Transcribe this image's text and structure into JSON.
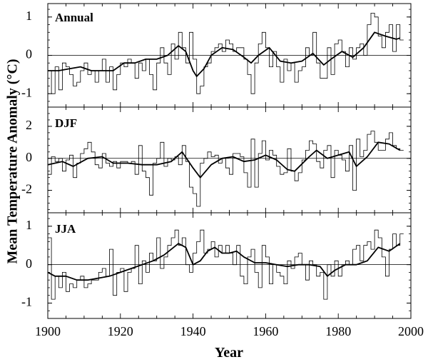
{
  "chart_data": {
    "type": "line",
    "ylabel": "Mean Temperature Anomaly (°C)",
    "xlabel": "Year",
    "x_range": [
      1900,
      2000
    ],
    "x_ticks": [
      1900,
      1920,
      1940,
      1960,
      1980,
      2000
    ],
    "grid": false,
    "legend": "none",
    "panels": [
      {
        "title": "Annual",
        "ylim": [
          -1.35,
          1.35
        ],
        "y_ticks": [
          1,
          0,
          -1
        ],
        "series": [
          {
            "style": "step",
            "color": "#000000",
            "x": [
              1900,
              1901,
              1902,
              1903,
              1904,
              1905,
              1906,
              1907,
              1908,
              1909,
              1910,
              1911,
              1912,
              1913,
              1914,
              1915,
              1916,
              1917,
              1918,
              1919,
              1920,
              1921,
              1922,
              1923,
              1924,
              1925,
              1926,
              1927,
              1928,
              1929,
              1930,
              1931,
              1932,
              1933,
              1934,
              1935,
              1936,
              1937,
              1938,
              1939,
              1940,
              1941,
              1942,
              1943,
              1944,
              1945,
              1946,
              1947,
              1948,
              1949,
              1950,
              1951,
              1952,
              1953,
              1954,
              1955,
              1956,
              1957,
              1958,
              1959,
              1960,
              1961,
              1962,
              1963,
              1964,
              1965,
              1966,
              1967,
              1968,
              1969,
              1970,
              1971,
              1972,
              1973,
              1974,
              1975,
              1976,
              1977,
              1978,
              1979,
              1980,
              1981,
              1982,
              1983,
              1984,
              1985,
              1986,
              1987,
              1988,
              1989,
              1990,
              1991,
              1992,
              1993,
              1994,
              1995,
              1996,
              1997
            ],
            "y": [
              -0.4,
              -1.0,
              -0.3,
              -0.9,
              -0.2,
              -0.3,
              -0.5,
              -0.8,
              -0.7,
              -0.4,
              -0.2,
              -0.5,
              -0.4,
              -0.7,
              -0.4,
              -0.1,
              -0.7,
              -0.3,
              -0.9,
              -0.5,
              -0.2,
              -0.3,
              -0.1,
              -0.2,
              -0.6,
              -0.2,
              -0.4,
              -0.1,
              -0.5,
              -0.9,
              -0.2,
              0.2,
              -0.2,
              -0.5,
              0.3,
              -0.1,
              0.6,
              0.2,
              -0.2,
              0.6,
              -0.1,
              -1.0,
              -0.8,
              -0.3,
              -0.2,
              0.1,
              0.2,
              0.3,
              0.1,
              0.4,
              0.3,
              0.1,
              0.2,
              0.2,
              -0.1,
              -0.5,
              -1.0,
              -0.2,
              0.3,
              0.6,
              0.2,
              -0.3,
              0.1,
              -0.3,
              -0.7,
              -0.1,
              -0.4,
              -0.2,
              -0.7,
              -0.4,
              -0.3,
              0.2,
              0.0,
              0.6,
              -0.2,
              -0.6,
              -0.6,
              0.2,
              -0.5,
              0.3,
              0.4,
              0.1,
              -0.3,
              0.2,
              -0.1,
              0.2,
              0.3,
              0.0,
              0.8,
              1.1,
              1.0,
              0.5,
              0.2,
              0.6,
              0.8,
              0.1,
              0.8,
              0.4
            ]
          },
          {
            "style": "smooth",
            "color": "#000000",
            "x": [
              1900,
              1903,
              1906,
              1909,
              1912,
              1915,
              1918,
              1921,
              1924,
              1927,
              1930,
              1933,
              1936,
              1938,
              1940,
              1941,
              1943,
              1945,
              1948,
              1951,
              1954,
              1956,
              1958,
              1961,
              1964,
              1967,
              1970,
              1973,
              1976,
              1978,
              1981,
              1984,
              1987,
              1990,
              1993,
              1996,
              1997
            ],
            "y": [
              -0.4,
              -0.4,
              -0.35,
              -0.3,
              -0.4,
              -0.4,
              -0.4,
              -0.2,
              -0.2,
              -0.1,
              -0.1,
              0.0,
              0.25,
              0.1,
              -0.4,
              -0.55,
              -0.35,
              0.0,
              0.2,
              0.15,
              -0.05,
              -0.2,
              0.0,
              0.2,
              -0.15,
              -0.2,
              -0.15,
              0.05,
              -0.25,
              -0.1,
              0.1,
              -0.05,
              0.2,
              0.6,
              0.5,
              0.42,
              0.45
            ]
          }
        ]
      },
      {
        "title": "DJF",
        "ylim": [
          -3.4,
          3.2
        ],
        "y_ticks": [
          2,
          0,
          -2
        ],
        "series": [
          {
            "style": "step",
            "color": "#000000",
            "x": [
              1900,
              1901,
              1902,
              1903,
              1904,
              1905,
              1906,
              1907,
              1908,
              1909,
              1910,
              1911,
              1912,
              1913,
              1914,
              1915,
              1916,
              1917,
              1918,
              1919,
              1920,
              1921,
              1922,
              1923,
              1924,
              1925,
              1926,
              1927,
              1928,
              1929,
              1930,
              1931,
              1932,
              1933,
              1934,
              1935,
              1936,
              1937,
              1938,
              1939,
              1940,
              1941,
              1942,
              1943,
              1944,
              1945,
              1946,
              1947,
              1948,
              1949,
              1950,
              1951,
              1952,
              1953,
              1954,
              1955,
              1956,
              1957,
              1958,
              1959,
              1960,
              1961,
              1962,
              1963,
              1964,
              1965,
              1966,
              1967,
              1968,
              1969,
              1970,
              1971,
              1972,
              1973,
              1974,
              1975,
              1976,
              1977,
              1978,
              1979,
              1980,
              1981,
              1982,
              1983,
              1984,
              1985,
              1986,
              1987,
              1988,
              1989,
              1990,
              1991,
              1992,
              1993,
              1994,
              1995,
              1996,
              1997
            ],
            "y": [
              -1.0,
              0.1,
              -0.2,
              0.0,
              -0.8,
              -0.1,
              0.2,
              -1.2,
              -0.3,
              0.3,
              0.6,
              1.0,
              0.4,
              -0.4,
              -0.6,
              0.3,
              -0.3,
              -0.5,
              -0.2,
              -0.6,
              -0.2,
              -0.2,
              -0.3,
              -0.2,
              -1.0,
              0.8,
              -0.8,
              -1.2,
              -2.3,
              -0.3,
              0.0,
              1.0,
              -0.5,
              0.0,
              -0.1,
              0.1,
              -0.4,
              0.8,
              -0.2,
              -1.8,
              -2.2,
              -3.0,
              -0.3,
              0.0,
              0.4,
              0.1,
              0.2,
              -0.3,
              0.0,
              -0.6,
              -1.0,
              0.3,
              0.3,
              0.1,
              -0.9,
              -1.8,
              1.2,
              -1.8,
              0.3,
              1.1,
              -0.1,
              0.5,
              0.2,
              -0.5,
              -1.0,
              -0.9,
              0.6,
              -0.8,
              -1.4,
              -0.9,
              -0.1,
              0.5,
              1.1,
              0.9,
              -0.2,
              -0.6,
              0.5,
              0.8,
              -1.2,
              0.5,
              0.2,
              -0.1,
              -0.8,
              0.8,
              -2.0,
              1.2,
              0.1,
              0.5,
              1.5,
              1.7,
              1.0,
              0.5,
              0.5,
              1.2,
              1.6,
              0.8,
              0.6,
              0.5
            ]
          },
          {
            "style": "smooth",
            "color": "#000000",
            "x": [
              1900,
              1904,
              1907,
              1911,
              1915,
              1918,
              1922,
              1926,
              1930,
              1934,
              1937,
              1940,
              1942,
              1945,
              1948,
              1951,
              1954,
              1957,
              1960,
              1963,
              1966,
              1968,
              1972,
              1974,
              1977,
              1980,
              1983,
              1985,
              1988,
              1991,
              1994,
              1997
            ],
            "y": [
              -0.4,
              -0.2,
              -0.5,
              0.0,
              0.1,
              -0.3,
              -0.3,
              -0.4,
              -0.4,
              -0.2,
              0.4,
              -0.6,
              -1.2,
              -0.4,
              0.0,
              0.1,
              -0.2,
              -0.1,
              0.2,
              -0.1,
              -0.7,
              -0.8,
              0.1,
              0.5,
              0.0,
              0.2,
              0.4,
              -0.5,
              0.1,
              1.0,
              0.9,
              0.5
            ]
          }
        ]
      },
      {
        "title": "JJA",
        "ylim": [
          -1.4,
          1.35
        ],
        "y_ticks": [
          1,
          0,
          -1
        ],
        "series": [
          {
            "style": "step",
            "color": "#000000",
            "x": [
              1900,
              1901,
              1902,
              1903,
              1904,
              1905,
              1906,
              1907,
              1908,
              1909,
              1910,
              1911,
              1912,
              1913,
              1914,
              1915,
              1916,
              1917,
              1918,
              1919,
              1920,
              1921,
              1922,
              1923,
              1924,
              1925,
              1926,
              1927,
              1928,
              1929,
              1930,
              1931,
              1932,
              1933,
              1934,
              1935,
              1936,
              1937,
              1938,
              1939,
              1940,
              1941,
              1942,
              1943,
              1944,
              1945,
              1946,
              1947,
              1948,
              1949,
              1950,
              1951,
              1952,
              1953,
              1954,
              1955,
              1956,
              1957,
              1958,
              1959,
              1960,
              1961,
              1962,
              1963,
              1964,
              1965,
              1966,
              1967,
              1968,
              1969,
              1970,
              1971,
              1972,
              1973,
              1974,
              1975,
              1976,
              1977,
              1978,
              1979,
              1980,
              1981,
              1982,
              1983,
              1984,
              1985,
              1986,
              1987,
              1988,
              1989,
              1990,
              1991,
              1992,
              1993,
              1994,
              1995,
              1996,
              1997
            ],
            "y": [
              0.7,
              -0.9,
              -0.3,
              -0.6,
              -0.2,
              -0.7,
              -0.5,
              -0.6,
              -0.4,
              -0.3,
              -0.6,
              -0.5,
              -0.4,
              -0.4,
              -0.2,
              -0.1,
              -0.3,
              0.4,
              -0.8,
              -0.2,
              -0.1,
              -0.7,
              -0.2,
              -0.1,
              0.5,
              -0.5,
              0.1,
              -0.2,
              0.3,
              0.1,
              0.7,
              -0.1,
              0.2,
              0.5,
              0.7,
              0.9,
              0.5,
              0.7,
              0.0,
              -0.2,
              0.3,
              0.6,
              0.9,
              0.3,
              0.4,
              0.6,
              0.2,
              0.5,
              0.3,
              0.5,
              0.3,
              0.0,
              0.5,
              -0.3,
              -0.5,
              0.2,
              0.4,
              -0.2,
              -0.6,
              0.5,
              0.2,
              -0.5,
              0.0,
              -0.2,
              -0.3,
              -0.5,
              0.1,
              -0.1,
              0.2,
              0.3,
              0.0,
              -0.4,
              0.1,
              0.0,
              -0.3,
              -0.2,
              -0.9,
              0.0,
              -0.3,
              0.1,
              -0.3,
              0.0,
              0.1,
              0.0,
              0.4,
              0.5,
              0.1,
              0.5,
              0.6,
              0.4,
              0.9,
              0.7,
              0.2,
              -0.3,
              0.4,
              0.8,
              0.5,
              0.8
            ]
          },
          {
            "style": "smooth",
            "color": "#000000",
            "x": [
              1900,
              1902,
              1905,
              1908,
              1911,
              1914,
              1917,
              1920,
              1923,
              1926,
              1929,
              1932,
              1934,
              1936,
              1938,
              1940,
              1942,
              1944,
              1946,
              1948,
              1950,
              1952,
              1954,
              1957,
              1960,
              1963,
              1966,
              1969,
              1972,
              1975,
              1977,
              1979,
              1982,
              1985,
              1988,
              1991,
              1994,
              1997
            ],
            "y": [
              -0.2,
              -0.3,
              -0.3,
              -0.4,
              -0.4,
              -0.35,
              -0.3,
              -0.2,
              -0.1,
              0.0,
              0.1,
              0.25,
              0.4,
              0.55,
              0.45,
              0.0,
              0.1,
              0.35,
              0.45,
              0.3,
              0.3,
              0.35,
              0.2,
              0.05,
              0.05,
              0.0,
              -0.05,
              0.0,
              0.0,
              -0.05,
              -0.3,
              -0.15,
              0.0,
              0.0,
              0.1,
              0.45,
              0.35,
              0.55
            ]
          }
        ]
      }
    ]
  }
}
